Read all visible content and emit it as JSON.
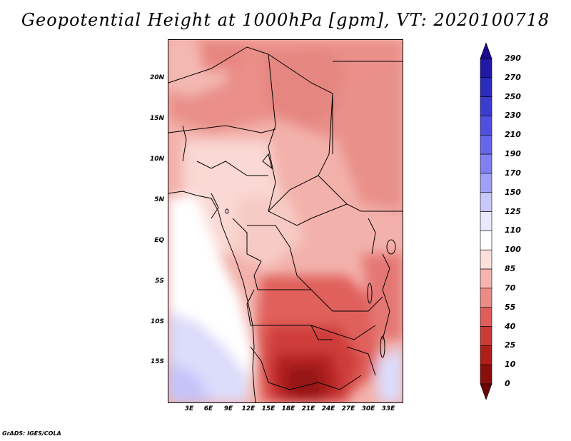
{
  "title": "Geopotential Height at 1000hPa [gpm], VT: 2020100718",
  "credit": "GrADS: IGES/COLA",
  "map": {
    "variable": "Geopotential Height at 1000hPa",
    "units": "gpm",
    "valid_time": "2020100718",
    "lat_labels": [
      "20N",
      "15N",
      "10N",
      "5N",
      "EQ",
      "5S",
      "10S",
      "15S"
    ],
    "lon_labels": [
      "3E",
      "6E",
      "9E",
      "12E",
      "15E",
      "18E",
      "21E",
      "24E",
      "27E",
      "30E",
      "33E"
    ]
  },
  "colorbar": {
    "levels": [
      "290",
      "270",
      "250",
      "230",
      "210",
      "190",
      "170",
      "150",
      "125",
      "110",
      "100",
      "85",
      "70",
      "55",
      "40",
      "25",
      "10",
      "0"
    ],
    "colors": [
      "#1c0a8c",
      "#2218a6",
      "#2c2cbc",
      "#3c3cd0",
      "#5050e0",
      "#6666ec",
      "#8080f4",
      "#a0a0f8",
      "#c8c8fc",
      "#e8e8fe",
      "#ffffff",
      "#fde0dc",
      "#f6b4ae",
      "#ec8c86",
      "#e05e5a",
      "#cc3a36",
      "#b01e1a",
      "#8a0e0c",
      "#6a0606"
    ]
  }
}
